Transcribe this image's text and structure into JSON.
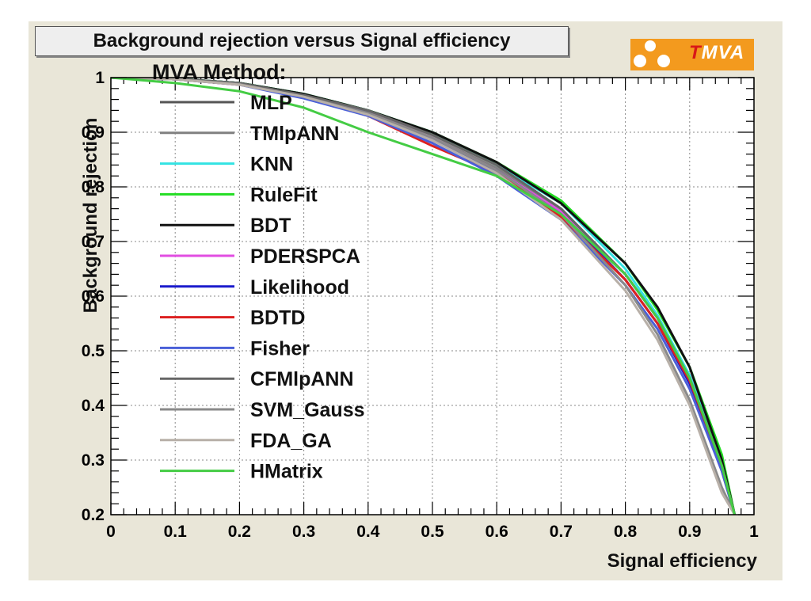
{
  "chart_data": {
    "type": "line",
    "title": "Background rejection versus Signal efficiency",
    "xlabel": "Signal efficiency",
    "ylabel": "Background rejection",
    "xlim": [
      0,
      1
    ],
    "ylim": [
      0.2,
      1
    ],
    "x_ticks": [
      "0",
      "0.1",
      "0.2",
      "0.3",
      "0.4",
      "0.5",
      "0.6",
      "0.7",
      "0.8",
      "0.9",
      "1"
    ],
    "y_ticks": [
      "0.2",
      "0.3",
      "0.4",
      "0.5",
      "0.6",
      "0.7",
      "0.8",
      "0.9",
      "1"
    ],
    "grid": true,
    "legend_title": "MVA Method:",
    "legend_position": "left inside plot",
    "x": [
      0,
      0.1,
      0.2,
      0.3,
      0.4,
      0.5,
      0.6,
      0.7,
      0.8,
      0.85,
      0.9,
      0.95,
      0.97
    ],
    "series": [
      {
        "name": "MLP",
        "color": "#555555",
        "values": [
          1,
          0.998,
          0.99,
          0.97,
          0.94,
          0.895,
          0.84,
          0.76,
          0.64,
          0.56,
          0.455,
          0.3,
          0.2
        ]
      },
      {
        "name": "TMlpANN",
        "color": "#808080",
        "values": [
          1,
          0.997,
          0.988,
          0.968,
          0.937,
          0.89,
          0.835,
          0.755,
          0.63,
          0.55,
          0.44,
          0.28,
          0.2
        ]
      },
      {
        "name": "KNN",
        "color": "#33e3e3",
        "values": [
          1,
          0.998,
          0.99,
          0.97,
          0.94,
          0.9,
          0.84,
          0.77,
          0.65,
          0.565,
          0.455,
          0.3,
          0.2
        ]
      },
      {
        "name": "RuleFit",
        "color": "#22dd22",
        "values": [
          1,
          0.998,
          0.99,
          0.97,
          0.94,
          0.9,
          0.845,
          0.775,
          0.66,
          0.575,
          0.47,
          0.31,
          0.2
        ]
      },
      {
        "name": "BDT",
        "color": "#111111",
        "values": [
          1,
          0.998,
          0.99,
          0.97,
          0.94,
          0.9,
          0.845,
          0.77,
          0.66,
          0.58,
          0.47,
          0.3,
          0.2
        ]
      },
      {
        "name": "PDERSPCA",
        "color": "#e24de2",
        "values": [
          1,
          0.997,
          0.988,
          0.965,
          0.935,
          0.89,
          0.83,
          0.755,
          0.64,
          0.56,
          0.45,
          0.29,
          0.2
        ]
      },
      {
        "name": "Likelihood",
        "color": "#1a1acc",
        "values": [
          1,
          0.997,
          0.988,
          0.965,
          0.935,
          0.885,
          0.83,
          0.75,
          0.63,
          0.55,
          0.44,
          0.29,
          0.2
        ]
      },
      {
        "name": "BDTD",
        "color": "#dd2020",
        "values": [
          1,
          0.997,
          0.987,
          0.965,
          0.93,
          0.875,
          0.825,
          0.745,
          0.63,
          0.55,
          0.445,
          0.29,
          0.2
        ]
      },
      {
        "name": "Fisher",
        "color": "#4a5fd8",
        "values": [
          1,
          0.997,
          0.987,
          0.962,
          0.93,
          0.88,
          0.82,
          0.74,
          0.62,
          0.54,
          0.43,
          0.28,
          0.2
        ]
      },
      {
        "name": "CFMlpANN",
        "color": "#666666",
        "values": [
          1,
          0.998,
          0.99,
          0.968,
          0.94,
          0.895,
          0.84,
          0.76,
          0.64,
          0.56,
          0.45,
          0.29,
          0.2
        ]
      },
      {
        "name": "SVM_Gauss",
        "color": "#8a8a8a",
        "values": [
          1,
          0.997,
          0.988,
          0.965,
          0.935,
          0.89,
          0.83,
          0.75,
          0.62,
          0.53,
          0.41,
          0.25,
          0.2
        ]
      },
      {
        "name": "FDA_GA",
        "color": "#b8b0a8",
        "values": [
          1,
          0.997,
          0.987,
          0.965,
          0.932,
          0.885,
          0.825,
          0.74,
          0.61,
          0.52,
          0.4,
          0.24,
          0.2
        ]
      },
      {
        "name": "HMatrix",
        "color": "#44cc44",
        "values": [
          1,
          0.99,
          0.975,
          0.945,
          0.9,
          0.86,
          0.82,
          0.75,
          0.64,
          0.56,
          0.45,
          0.29,
          0.2
        ]
      }
    ]
  },
  "logo": {
    "text_t": "T",
    "text_rest": "MVA"
  }
}
